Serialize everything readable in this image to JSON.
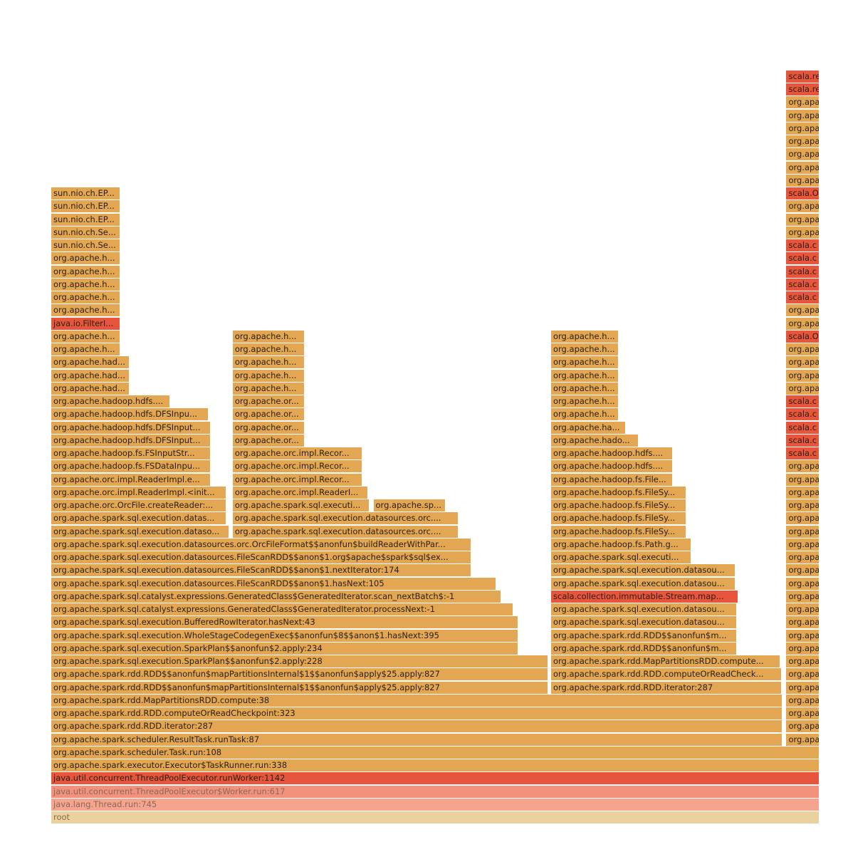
{
  "chart_data": {
    "type": "flamegraph",
    "x_unit": "percent of samples",
    "colors": {
      "o": "#e3a653",
      "r": "#e8553d",
      "s1": "#f2927c",
      "s2": "#f5a48d",
      "root": "#ead19d"
    },
    "frames": [
      [
        0,
        0,
        100,
        "root",
        "root"
      ],
      [
        1,
        0,
        100,
        "s2",
        "java.lang.Thread.run:745"
      ],
      [
        2,
        0,
        100,
        "s1",
        "java.util.concurrent.ThreadPoolExecutor$Worker.run:617"
      ],
      [
        3,
        0,
        100,
        "r",
        "java.util.concurrent.ThreadPoolExecutor.runWorker:1142"
      ],
      [
        4,
        0,
        100,
        "o",
        "org.apache.spark.executor.Executor$TaskRunner.run:338"
      ],
      [
        5,
        0,
        100,
        "o",
        "org.apache.spark.scheduler.Task.run:108"
      ],
      [
        6,
        0,
        95.2,
        "o",
        "org.apache.spark.scheduler.ResultTask.runTask:87"
      ],
      [
        7,
        0,
        95.2,
        "o",
        "org.apache.spark.rdd.RDD.iterator:287"
      ],
      [
        8,
        0,
        95.2,
        "o",
        "org.apache.spark.rdd.RDD.computeOrReadCheckpoint:323"
      ],
      [
        9,
        0,
        95.2,
        "o",
        "org.apache.spark.rdd.MapPartitionsRDD.compute:38"
      ],
      [
        10,
        0,
        64.7,
        "o",
        "org.apache.spark.rdd.RDD$$anonfun$mapPartitionsInternal$1$$anonfun$apply$25.apply:827"
      ],
      [
        11,
        0,
        64.7,
        "o",
        "org.apache.spark.rdd.RDD$$anonfun$mapPartitionsInternal$1$$anonfun$apply$25.apply:827"
      ],
      [
        12,
        0,
        64.7,
        "o",
        "org.apache.spark.sql.execution.SparkPlan$$anonfun$2.apply:228"
      ],
      [
        13,
        0,
        60.8,
        "o",
        "org.apache.spark.sql.execution.SparkPlan$$anonfun$2.apply:234"
      ],
      [
        14,
        0,
        60.8,
        "o",
        "org.apache.spark.sql.execution.WholeStageCodegenExec$$anonfun$8$$anon$1.hasNext:395"
      ],
      [
        15,
        0,
        60.8,
        "o",
        "org.apache.spark.sql.execution.BufferedRowIterator.hasNext:43"
      ],
      [
        16,
        0,
        60.2,
        "o",
        "org.apache.spark.sql.catalyst.expressions.GeneratedClass$GeneratedIterator.processNext:-1"
      ],
      [
        17,
        0,
        58.6,
        "o",
        "org.apache.spark.sql.catalyst.expressions.GeneratedClass$GeneratedIterator.scan_nextBatch$:-1"
      ],
      [
        18,
        0,
        58.0,
        "o",
        "org.apache.spark.sql.execution.datasources.FileScanRDD$$anon$1.hasNext:105"
      ],
      [
        19,
        0,
        54.7,
        "o",
        "org.apache.spark.sql.execution.datasources.FileScanRDD$$anon$1.nextIterator:174"
      ],
      [
        20,
        0,
        54.7,
        "o",
        "org.apache.spark.sql.execution.datasources.FileScanRDD$$anon$1.org$apache$spark$sql$ex..."
      ],
      [
        21,
        0,
        54.7,
        "o",
        "org.apache.spark.sql.execution.datasources.orc.OrcFileFormat$$anonfun$buildReaderWithPar..."
      ],
      [
        22,
        0,
        23.2,
        "o",
        "org.apache.spark.sql.execution.dataso..."
      ],
      [
        23,
        0,
        22.9,
        "o",
        "org.apache.spark.sql.execution.datas..."
      ],
      [
        24,
        0,
        22.9,
        "o",
        "org.apache.orc.OrcFile.createReader:..."
      ],
      [
        25,
        0,
        22.9,
        "o",
        "org.apache.orc.impl.ReaderImpl.<init..."
      ],
      [
        26,
        0,
        20.8,
        "o",
        "org.apache.orc.impl.ReaderImpl.e..."
      ],
      [
        27,
        0,
        20.8,
        "o",
        "org.apache.hadoop.fs.FSDataInpu..."
      ],
      [
        28,
        0,
        20.8,
        "o",
        "org.apache.hadoop.fs.FSInputStr..."
      ],
      [
        29,
        0,
        20.8,
        "o",
        "org.apache.hadoop.hdfs.DFSInput..."
      ],
      [
        30,
        0,
        20.8,
        "o",
        "org.apache.hadoop.hdfs.DFSInput..."
      ],
      [
        31,
        0,
        20.6,
        "o",
        "org.apache.hadoop.hdfs.DFSInpu..."
      ],
      [
        32,
        0,
        15.6,
        "o",
        "org.apache.hadoop.hdfs...."
      ],
      [
        33,
        0,
        10.3,
        "o",
        "org.apache.had..."
      ],
      [
        34,
        0,
        10.3,
        "o",
        "org.apache.had..."
      ],
      [
        35,
        0,
        10.3,
        "o",
        "org.apache.had..."
      ],
      [
        36,
        0,
        9.1,
        "o",
        "org.apache.h..."
      ],
      [
        37,
        0,
        9.1,
        "o",
        "org.apache.h..."
      ],
      [
        38,
        0,
        9.1,
        "r",
        "java.io.FilterI..."
      ],
      [
        39,
        0,
        9.1,
        "o",
        "org.apache.h..."
      ],
      [
        40,
        0,
        9.1,
        "o",
        "org.apache.h..."
      ],
      [
        41,
        0,
        9.1,
        "o",
        "org.apache.h..."
      ],
      [
        42,
        0,
        9.1,
        "o",
        "org.apache.h..."
      ],
      [
        43,
        0,
        9.1,
        "o",
        "org.apache.h..."
      ],
      [
        44,
        0,
        9.1,
        "o",
        "sun.nio.ch.Se..."
      ],
      [
        45,
        0,
        9.1,
        "o",
        "sun.nio.ch.Se..."
      ],
      [
        46,
        0,
        9.1,
        "o",
        "sun.nio.ch.EP..."
      ],
      [
        47,
        0,
        9.1,
        "o",
        "sun.nio.ch.EP..."
      ],
      [
        48,
        0,
        9.1,
        "o",
        "sun.nio.ch.EP..."
      ],
      [
        22,
        23.6,
        29.5,
        "o",
        "org.apache.spark.sql.execution.datasources.orc...."
      ],
      [
        23,
        23.6,
        29.5,
        "o",
        "org.apache.spark.sql.execution.datasources.orc...."
      ],
      [
        24,
        23.6,
        17.9,
        "o",
        "org.apache.spark.sql.executi..."
      ],
      [
        24,
        41.9,
        9.5,
        "o",
        "org.apache.sp..."
      ],
      [
        25,
        23.6,
        17.7,
        "o",
        "org.apache.orc.impl.ReaderI..."
      ],
      [
        26,
        23.6,
        17.0,
        "o",
        "org.apache.orc.impl.Recor..."
      ],
      [
        27,
        23.6,
        17.0,
        "o",
        "org.apache.orc.impl.Recor..."
      ],
      [
        28,
        23.6,
        17.0,
        "o",
        "org.apache.orc.impl.Recor..."
      ],
      [
        29,
        23.6,
        9.5,
        "o",
        "org.apache.or..."
      ],
      [
        30,
        23.6,
        9.5,
        "o",
        "org.apache.or..."
      ],
      [
        31,
        23.6,
        9.5,
        "o",
        "org.apache.or..."
      ],
      [
        32,
        23.6,
        9.5,
        "o",
        "org.apache.or..."
      ],
      [
        33,
        23.6,
        9.5,
        "o",
        "org.apache.h..."
      ],
      [
        34,
        23.6,
        9.5,
        "o",
        "org.apache.h..."
      ],
      [
        35,
        23.6,
        9.5,
        "o",
        "org.apache.h..."
      ],
      [
        36,
        23.6,
        9.5,
        "o",
        "org.apache.h..."
      ],
      [
        37,
        23.6,
        9.5,
        "o",
        "org.apache.h..."
      ],
      [
        10,
        65.0,
        30.1,
        "o",
        "org.apache.spark.rdd.RDD.iterator:287"
      ],
      [
        11,
        65.0,
        30.1,
        "o",
        "org.apache.spark.rdd.RDD.computeOrReadCheck..."
      ],
      [
        12,
        65.0,
        29.9,
        "o",
        "org.apache.spark.rdd.MapPartitionsRDD.compute..."
      ],
      [
        13,
        65.0,
        24.3,
        "o",
        "org.apache.spark.rdd.RDD$$anonfun$m..."
      ],
      [
        14,
        65.0,
        24.3,
        "o",
        "org.apache.spark.rdd.RDD$$anonfun$m..."
      ],
      [
        15,
        65.0,
        24.3,
        "o",
        "org.apache.spark.sql.execution.datasou..."
      ],
      [
        16,
        65.0,
        24.3,
        "o",
        "org.apache.spark.sql.execution.datasou..."
      ],
      [
        17,
        65.0,
        24.4,
        "r",
        "scala.collection.immutable.Stream.map..."
      ],
      [
        18,
        65.0,
        24.1,
        "o",
        "org.apache.spark.sql.execution.datasou..."
      ],
      [
        19,
        65.0,
        24.1,
        "o",
        "org.apache.spark.sql.execution.datasou..."
      ],
      [
        20,
        65.0,
        18.3,
        "o",
        "org.apache.spark.sql.executi..."
      ],
      [
        21,
        65.0,
        18.3,
        "o",
        "org.apache.hadoop.fs.Path.g..."
      ],
      [
        22,
        65.0,
        17.7,
        "o",
        "org.apache.hadoop.fs.FileSy..."
      ],
      [
        23,
        65.0,
        17.7,
        "o",
        "org.apache.hadoop.fs.FileSy..."
      ],
      [
        24,
        65.0,
        17.7,
        "o",
        "org.apache.hadoop.fs.FileSy..."
      ],
      [
        25,
        65.0,
        17.7,
        "o",
        "org.apache.hadoop.fs.FileSy..."
      ],
      [
        26,
        65.0,
        15.9,
        "o",
        "org.apache.hadoop.fs.File..."
      ],
      [
        27,
        65.0,
        15.9,
        "o",
        "org.apache.hadoop.hdfs...."
      ],
      [
        28,
        65.0,
        15.9,
        "o",
        "org.apache.hadoop.hdfs...."
      ],
      [
        29,
        65.0,
        11.5,
        "o",
        "org.apache.hado..."
      ],
      [
        30,
        65.0,
        9.8,
        "o",
        "org.apache.ha..."
      ],
      [
        31,
        65.0,
        8.9,
        "o",
        "org.apache.h..."
      ],
      [
        32,
        65.0,
        8.9,
        "o",
        "org.apache.h..."
      ],
      [
        33,
        65.0,
        8.9,
        "o",
        "org.apache.h..."
      ],
      [
        34,
        65.0,
        8.9,
        "o",
        "org.apache.h..."
      ],
      [
        35,
        65.0,
        8.9,
        "o",
        "org.apache.h..."
      ],
      [
        36,
        65.0,
        8.9,
        "o",
        "org.apache.h..."
      ],
      [
        37,
        65.0,
        8.9,
        "o",
        "org.apache.h..."
      ],
      [
        6,
        95.6,
        4.4,
        "o",
        "org.apa"
      ],
      [
        7,
        95.6,
        4.4,
        "o",
        "org.apa"
      ],
      [
        8,
        95.6,
        4.4,
        "o",
        "org.apa"
      ],
      [
        9,
        95.6,
        4.4,
        "o",
        "org.apa"
      ],
      [
        10,
        95.6,
        4.4,
        "o",
        "org.apa"
      ],
      [
        11,
        95.6,
        4.4,
        "o",
        "org.apa"
      ],
      [
        12,
        95.6,
        4.4,
        "o",
        "org.apa"
      ],
      [
        13,
        95.6,
        4.4,
        "o",
        "org.apa"
      ],
      [
        14,
        95.6,
        4.4,
        "o",
        "org.apa"
      ],
      [
        15,
        95.6,
        4.4,
        "o",
        "org.apa"
      ],
      [
        16,
        95.6,
        4.4,
        "o",
        "org.apa"
      ],
      [
        17,
        95.6,
        4.4,
        "o",
        "org.apa"
      ],
      [
        18,
        95.6,
        4.4,
        "o",
        "org.apa"
      ],
      [
        19,
        95.6,
        4.4,
        "o",
        "org.apa"
      ],
      [
        20,
        95.6,
        4.4,
        "o",
        "org.apa"
      ],
      [
        21,
        95.6,
        4.4,
        "o",
        "org.apa"
      ],
      [
        22,
        95.6,
        4.4,
        "o",
        "org.apa"
      ],
      [
        23,
        95.6,
        4.4,
        "o",
        "org.apa"
      ],
      [
        24,
        95.6,
        4.4,
        "o",
        "org.apa"
      ],
      [
        25,
        95.6,
        4.4,
        "o",
        "org.apa"
      ],
      [
        26,
        95.6,
        4.4,
        "o",
        "org.apa"
      ],
      [
        27,
        95.6,
        4.4,
        "o",
        "org.apa"
      ],
      [
        28,
        95.6,
        4.4,
        "r",
        "scala.c"
      ],
      [
        29,
        95.6,
        4.4,
        "r",
        "scala.c"
      ],
      [
        30,
        95.6,
        4.4,
        "r",
        "scala.c"
      ],
      [
        31,
        95.6,
        4.4,
        "r",
        "scala.c"
      ],
      [
        32,
        95.6,
        4.4,
        "r",
        "scala.c"
      ],
      [
        33,
        95.6,
        4.4,
        "o",
        "org.apa"
      ],
      [
        34,
        95.6,
        4.4,
        "o",
        "org.apa"
      ],
      [
        35,
        95.6,
        4.4,
        "o",
        "org.apa"
      ],
      [
        36,
        95.6,
        4.4,
        "o",
        "org.apa"
      ],
      [
        37,
        95.6,
        4.4,
        "r",
        "scala.O"
      ],
      [
        38,
        95.6,
        4.4,
        "o",
        "org.apa"
      ],
      [
        39,
        95.6,
        4.4,
        "o",
        "org.apa"
      ],
      [
        40,
        95.6,
        4.4,
        "r",
        "scala.c"
      ],
      [
        41,
        95.6,
        4.4,
        "r",
        "scala.c"
      ],
      [
        42,
        95.6,
        4.4,
        "r",
        "scala.c"
      ],
      [
        43,
        95.6,
        4.4,
        "r",
        "scala.c"
      ],
      [
        44,
        95.6,
        4.4,
        "r",
        "scala.c"
      ],
      [
        45,
        95.6,
        4.4,
        "o",
        "org.apa"
      ],
      [
        46,
        95.6,
        4.4,
        "o",
        "org.apa"
      ],
      [
        47,
        95.6,
        4.4,
        "o",
        "org.apa"
      ],
      [
        48,
        95.6,
        4.4,
        "r",
        "scala.O"
      ],
      [
        49,
        95.6,
        4.4,
        "o",
        "org.apa"
      ],
      [
        50,
        95.6,
        4.4,
        "o",
        "org.apa"
      ],
      [
        51,
        95.6,
        4.4,
        "o",
        "org.apa"
      ],
      [
        52,
        95.6,
        4.4,
        "o",
        "org.apa"
      ],
      [
        53,
        95.6,
        4.4,
        "o",
        "org.apa"
      ],
      [
        54,
        95.6,
        4.4,
        "o",
        "org.apa"
      ],
      [
        55,
        95.6,
        4.4,
        "o",
        "org.apa"
      ],
      [
        56,
        95.6,
        4.4,
        "r",
        "scala.re"
      ],
      [
        57,
        95.6,
        4.4,
        "r",
        "scala.re"
      ]
    ]
  }
}
